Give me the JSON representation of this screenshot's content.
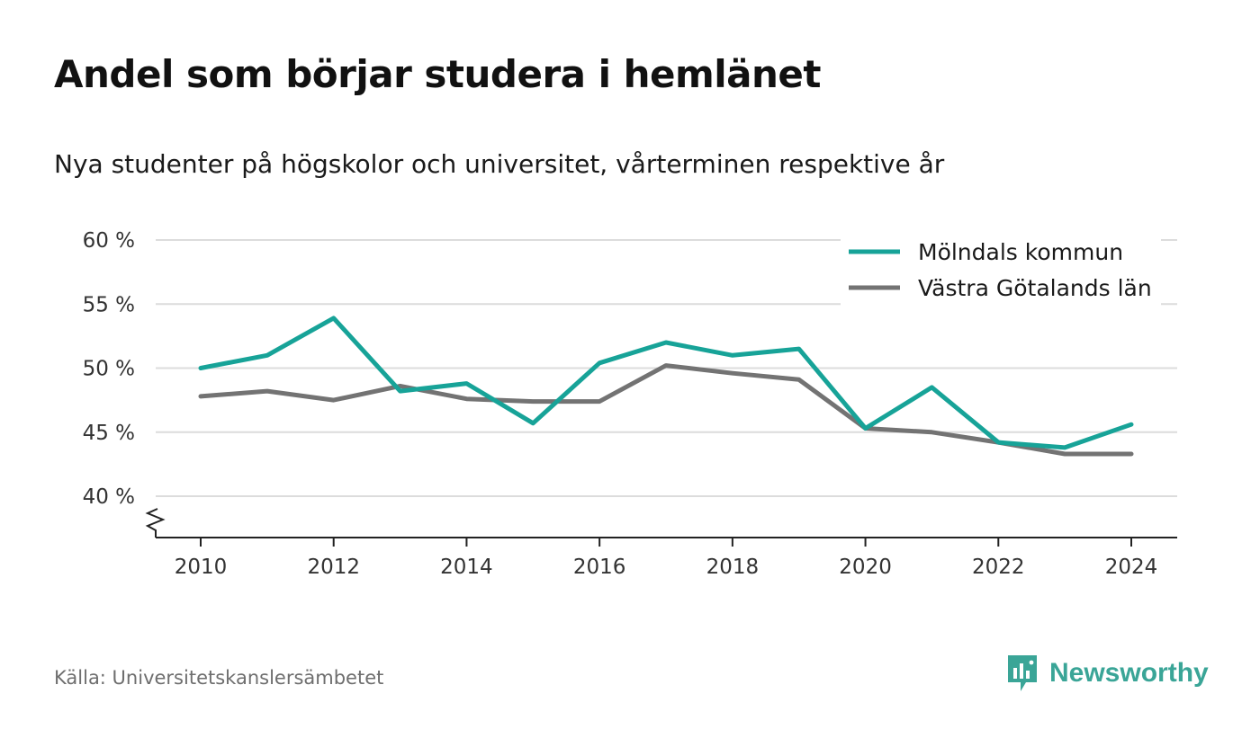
{
  "header": {
    "title": "Andel som börjar studera i hemlänet",
    "subtitle": "Nya studenter på högskolor och universitet, vårterminen respektive år"
  },
  "footer": {
    "source": "Källa: Universitetskanslersämbetet",
    "brand": "Newsworthy"
  },
  "colors": {
    "brand": "#3aa597"
  },
  "chart_data": {
    "type": "line",
    "title": "Andel som börjar studera i hemlänet",
    "subtitle": "Nya studenter på högskolor och universitet, vårterminen respektive år",
    "xlabel": "",
    "ylabel": "",
    "x": [
      2010,
      2011,
      2012,
      2013,
      2014,
      2015,
      2016,
      2017,
      2018,
      2019,
      2020,
      2021,
      2022,
      2023,
      2024
    ],
    "x_ticks": [
      "2010",
      "2012",
      "2014",
      "2016",
      "2018",
      "2020",
      "2022",
      "2024"
    ],
    "y_ticks": [
      "40 %",
      "45 %",
      "50 %",
      "55 %",
      "60 %"
    ],
    "ylim": [
      40,
      60
    ],
    "grid": true,
    "y_axis_break": true,
    "legend_position": "top-right",
    "series": [
      {
        "name": "Mölndals kommun",
        "color": "#17a398",
        "values": [
          50.0,
          51.0,
          53.9,
          48.2,
          48.8,
          45.7,
          50.4,
          52.0,
          51.0,
          51.5,
          45.3,
          48.5,
          44.2,
          43.8,
          45.6
        ]
      },
      {
        "name": "Västra Götalands län",
        "color": "#737373",
        "values": [
          47.8,
          48.2,
          47.5,
          48.6,
          47.6,
          47.4,
          47.4,
          50.2,
          49.6,
          49.1,
          45.3,
          45.0,
          44.2,
          43.3,
          43.3
        ]
      }
    ]
  }
}
